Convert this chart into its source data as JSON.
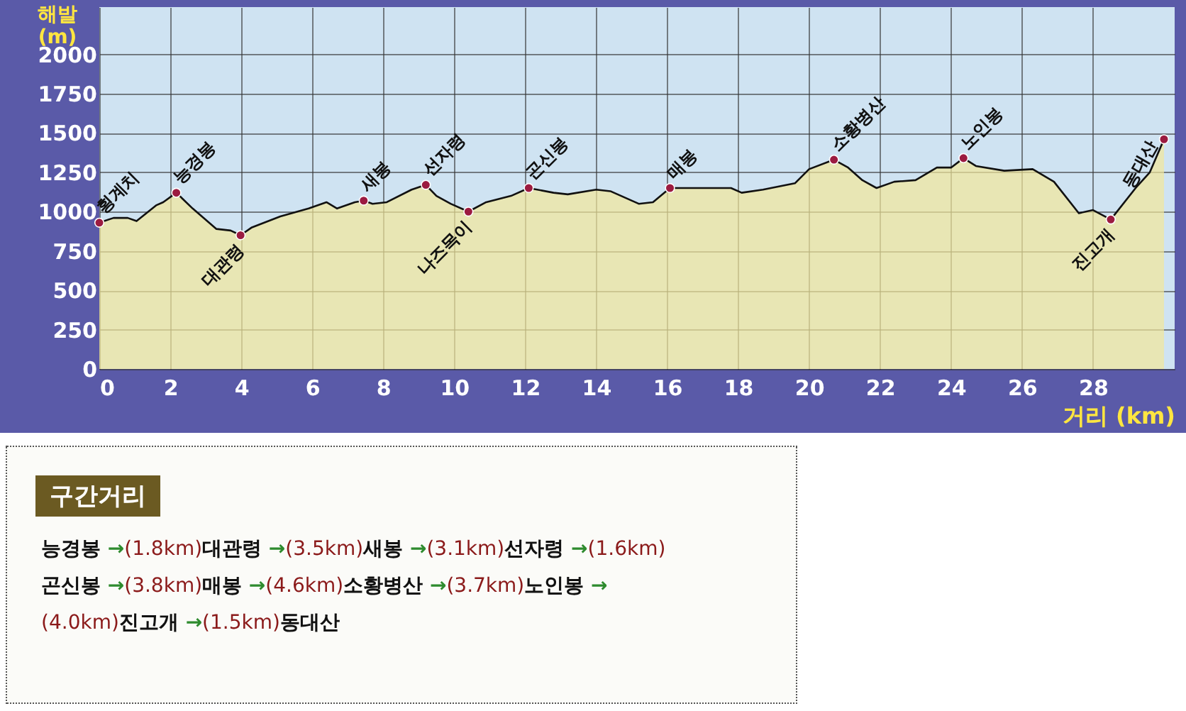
{
  "chart_data": {
    "type": "area",
    "xlabel": "거리 (km)",
    "ylabel": "해발 (m)",
    "xlim": [
      0,
      30.3
    ],
    "xticks": [
      0,
      2,
      4,
      6,
      8,
      10,
      12,
      14,
      16,
      18,
      20,
      22,
      24,
      26,
      28
    ],
    "ylim": [
      0,
      2300
    ],
    "yticks": [
      0,
      250,
      500,
      750,
      1000,
      1250,
      1500,
      1750,
      2000
    ],
    "grid": true,
    "series": [
      {
        "color": "#f2e79a",
        "x": [
          0,
          0.4,
          0.8,
          1.05,
          1.6,
          1.8,
          2.17,
          2.63,
          3.3,
          3.7,
          3.98,
          4.3,
          5.1,
          5.9,
          6.4,
          6.7,
          7.2,
          7.45,
          7.7,
          8.1,
          8.8,
          9.2,
          9.5,
          9.9,
          10.4,
          10.9,
          11.6,
          12.1,
          12.8,
          13.2,
          14,
          14.4,
          15.2,
          15.6,
          16.08,
          16.6,
          17.8,
          18.1,
          18.7,
          19.6,
          20,
          20.7,
          21.1,
          21.5,
          21.9,
          22.4,
          23,
          23.6,
          24,
          24.35,
          24.7,
          25.5,
          26.3,
          26.9,
          27.6,
          28,
          28.5,
          29.2,
          29.6,
          30
        ],
        "values": [
          930,
          960,
          960,
          940,
          1040,
          1060,
          1120,
          1020,
          890,
          880,
          850,
          900,
          970,
          1020,
          1060,
          1020,
          1060,
          1070,
          1050,
          1060,
          1140,
          1170,
          1100,
          1050,
          1000,
          1060,
          1100,
          1150,
          1120,
          1110,
          1140,
          1130,
          1050,
          1060,
          1150,
          1150,
          1150,
          1120,
          1140,
          1180,
          1270,
          1330,
          1280,
          1200,
          1150,
          1190,
          1200,
          1280,
          1280,
          1340,
          1290,
          1260,
          1270,
          1190,
          990,
          1010,
          950,
          1150,
          1250,
          1460
        ]
      },
      {
        "type": "scatter",
        "color": "#9b1b40",
        "marker": "circle",
        "x": [
          0,
          2.17,
          3.98,
          7.45,
          9.2,
          10.4,
          12.1,
          16.08,
          20.7,
          24.35,
          28.5,
          30
        ],
        "values": [
          930,
          1120,
          850,
          1070,
          1170,
          1000,
          1150,
          1150,
          1330,
          1340,
          950,
          1460
        ]
      }
    ],
    "annotations": [
      {
        "text": "횡계치",
        "x": 0,
        "y": 930
      },
      {
        "text": "능경봉",
        "x": 2.17,
        "y": 1120
      },
      {
        "text": "대관령",
        "x": 3.98,
        "y": 850
      },
      {
        "text": "새봉",
        "x": 7.45,
        "y": 1070
      },
      {
        "text": "선자령",
        "x": 9.2,
        "y": 1170
      },
      {
        "text": "나즈목이",
        "x": 10.4,
        "y": 1000
      },
      {
        "text": "곤신봉",
        "x": 12.1,
        "y": 1150
      },
      {
        "text": "매봉",
        "x": 16.08,
        "y": 1150
      },
      {
        "text": "소황병산",
        "x": 20.7,
        "y": 1330
      },
      {
        "text": "노인봉",
        "x": 24.35,
        "y": 1340
      },
      {
        "text": "진고개",
        "x": 28.5,
        "y": 950
      },
      {
        "text": "동대산",
        "x": 30,
        "y": 1460
      },
      "구간거리",
      "능경봉 →(1.8km)대관령 →(3.5km)새봉 →(3.1km)선자령 →(1.6km)",
      "곤신봉 →(3.8km)매봉 →(4.6km)소황병산 →(3.7km)노인봉 →",
      "(4.0km)진고개 →(1.5km)동대산"
    ]
  }
}
